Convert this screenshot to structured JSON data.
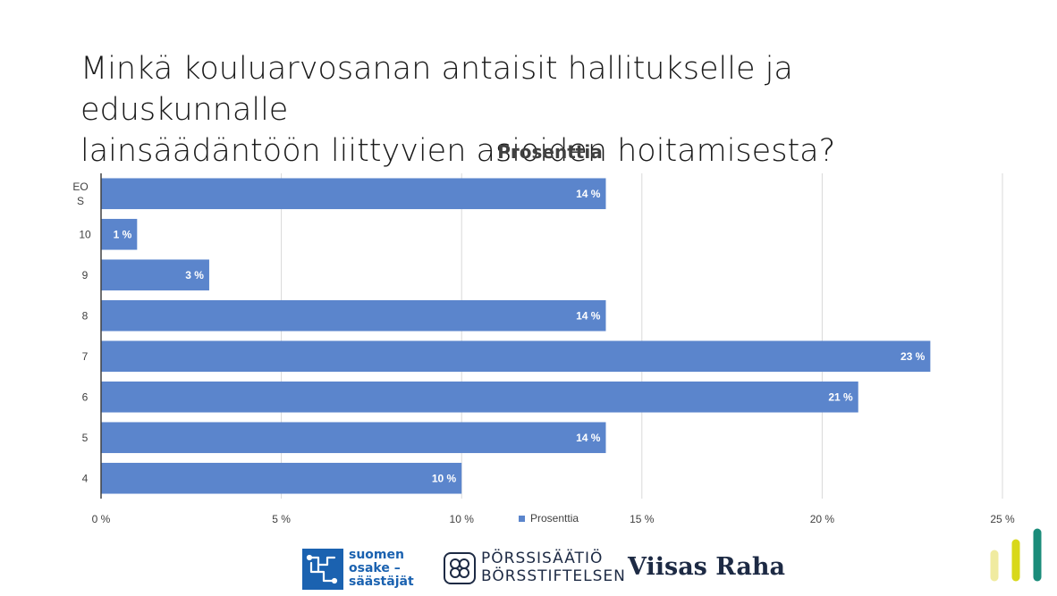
{
  "slide": {
    "title": "Minkä kouluarvosanan antaisit hallitukselle ja eduskunnalle\nlainsäädäntöön liittyvien asioiden hoitamisesta?"
  },
  "chart_data": {
    "type": "bar",
    "orientation": "horizontal",
    "title": "Prosenttia",
    "categories": [
      "EOS",
      "10",
      "9",
      "8",
      "7",
      "6",
      "5",
      "4"
    ],
    "series": [
      {
        "name": "Prosenttia",
        "values": [
          14,
          1,
          3,
          14,
          23,
          21,
          14,
          10
        ],
        "color": "#5b85cc"
      }
    ],
    "data_labels": [
      "14 %",
      "1 %",
      "3 %",
      "14 %",
      "23 %",
      "21 %",
      "14 %",
      "10 %"
    ],
    "xlim": [
      0,
      25
    ],
    "xticks": [
      0,
      5,
      10,
      15,
      20,
      25
    ],
    "xtick_labels": [
      "0 %",
      "5 %",
      "10 %",
      "15 %",
      "20 %",
      "25 %"
    ],
    "grid": "vertical",
    "legend": "bottom"
  },
  "logos": {
    "sos": {
      "line1": "suomen",
      "line2": "osake –",
      "line3": "säästäjät"
    },
    "porssisaatio": {
      "line1": "PÖRSSISÄÄTIÖ",
      "line2": "BÖRSSTIFTELSEN"
    },
    "viisas_raha": "Viisas Raha"
  },
  "colors": {
    "bar": "#5b85cc",
    "sos_blue": "#1b62b0",
    "navy": "#1d2a44",
    "deco_1": "#f0eba0",
    "deco_2": "#d8d81a",
    "deco_3": "#1a8c7a"
  }
}
